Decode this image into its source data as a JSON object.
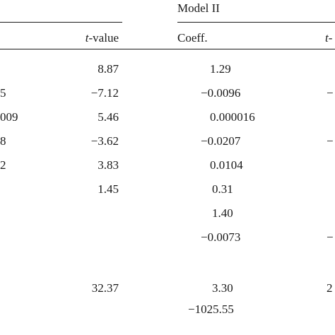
{
  "table": {
    "group_header": "Model II",
    "col_headers": {
      "tvalue_prefix": "t",
      "tvalue_suffix": "-value",
      "coeff": "Coeff.",
      "partial_right": "t-"
    },
    "rows": [
      {
        "left_tail": "",
        "tvalue": "8.87",
        "coeff": "1.29",
        "right_tail": ""
      },
      {
        "left_tail": "5",
        "tvalue": "−7.12",
        "coeff": "−0.0096",
        "right_tail": "−"
      },
      {
        "left_tail": "009",
        "tvalue": "5.46",
        "coeff": "0.000016",
        "right_tail": ""
      },
      {
        "left_tail": "8",
        "tvalue": "−3.62",
        "coeff": "−0.0207",
        "right_tail": "−"
      },
      {
        "left_tail": "2",
        "tvalue": "3.83",
        "coeff": "0.0104",
        "right_tail": ""
      },
      {
        "left_tail": "",
        "tvalue": "1.45",
        "coeff": "0.31",
        "right_tail": ""
      },
      {
        "left_tail": "",
        "tvalue": "",
        "coeff": "1.40",
        "right_tail": ""
      },
      {
        "left_tail": "",
        "tvalue": "",
        "coeff": "−0.0073",
        "right_tail": "−"
      },
      {
        "left_tail": "",
        "tvalue": "",
        "coeff": "",
        "right_tail": ""
      },
      {
        "left_tail": "",
        "tvalue": "32.37",
        "coeff": "3.30",
        "right_tail": "2"
      },
      {
        "left_tail": "",
        "tvalue": "",
        "coeff": "−1025.55",
        "right_tail": ""
      }
    ]
  }
}
